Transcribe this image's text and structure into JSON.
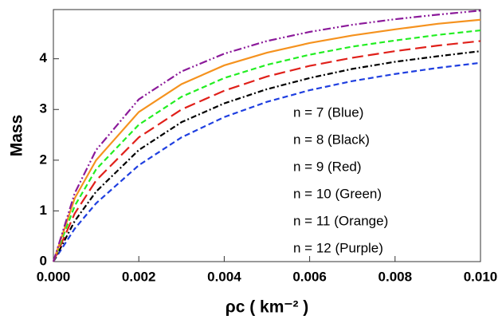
{
  "chart_data": {
    "type": "line",
    "xlabel": "ρc ( km⁻² )",
    "ylabel": "Mass",
    "x": [
      0,
      0.0005,
      0.001,
      0.002,
      0.003,
      0.004,
      0.005,
      0.006,
      0.007,
      0.008,
      0.009,
      0.01
    ],
    "series": [
      {
        "name": "n = 7 (Blue)",
        "color": "#1f3fe0",
        "style": "dashed",
        "values": [
          0,
          0.65,
          1.15,
          1.9,
          2.45,
          2.85,
          3.15,
          3.38,
          3.56,
          3.7,
          3.82,
          3.92
        ]
      },
      {
        "name": "n = 8 (Black)",
        "color": "#000000",
        "style": "dashdot",
        "values": [
          0,
          0.8,
          1.38,
          2.2,
          2.75,
          3.12,
          3.4,
          3.62,
          3.8,
          3.94,
          4.05,
          4.15
        ]
      },
      {
        "name": "n = 9 (Red)",
        "color": "#e0201a",
        "style": "longdash",
        "values": [
          0,
          0.95,
          1.6,
          2.45,
          3.0,
          3.37,
          3.65,
          3.86,
          4.02,
          4.15,
          4.26,
          4.35
        ]
      },
      {
        "name": "n = 10 (Green)",
        "color": "#22ee22",
        "style": "dashed",
        "values": [
          0,
          1.1,
          1.82,
          2.7,
          3.25,
          3.62,
          3.88,
          4.08,
          4.24,
          4.36,
          4.47,
          4.56
        ]
      },
      {
        "name": "n = 11 (Orange)",
        "color": "#f5921e",
        "style": "solid",
        "values": [
          0,
          1.25,
          2.0,
          2.95,
          3.5,
          3.87,
          4.12,
          4.31,
          4.46,
          4.58,
          4.69,
          4.77
        ]
      },
      {
        "name": "n = 12 (Purple)",
        "color": "#8b1a9a",
        "style": "dashdotdot",
        "values": [
          0,
          1.35,
          2.2,
          3.2,
          3.75,
          4.1,
          4.35,
          4.53,
          4.67,
          4.78,
          4.87,
          4.95
        ]
      }
    ],
    "xlim": [
      0,
      0.01
    ],
    "xticks": [
      {
        "value": 0,
        "label": "0.000"
      },
      {
        "value": 0.002,
        "label": "0.002"
      },
      {
        "value": 0.004,
        "label": "0.004"
      },
      {
        "value": 0.006,
        "label": "0.006"
      },
      {
        "value": 0.008,
        "label": "0.008"
      },
      {
        "value": 0.01,
        "label": "0.010"
      }
    ],
    "ylim": [
      0,
      4.97
    ],
    "yticks": [
      0,
      1,
      2,
      3,
      4
    ],
    "grid": false
  }
}
